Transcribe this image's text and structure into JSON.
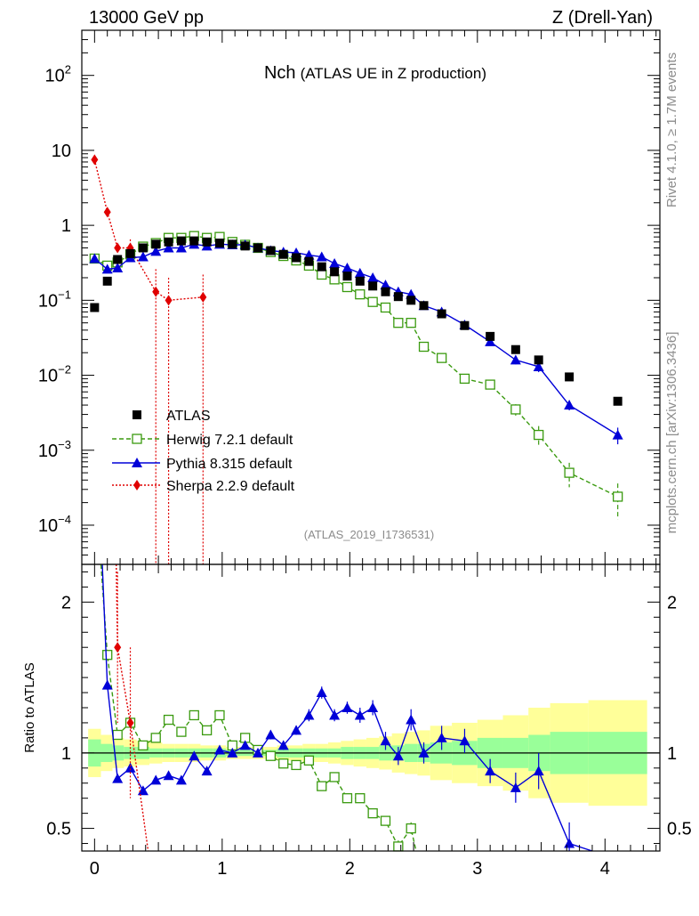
{
  "header": {
    "left": "13000 GeV pp",
    "right": "Z (Drell-Yan)"
  },
  "side_labels": {
    "top": "Rivet 4.1.0, ≥ 1.7M events",
    "bottom": "mcplots.cern.ch [arXiv:1306.3436]"
  },
  "colors": {
    "atlas": "#000000",
    "herwig": "#3a9a0f",
    "pythia": "#0000d8",
    "sherpa": "#e00000",
    "band_outer": "#ffff99",
    "band_inner": "#99ff99"
  },
  "chart_data": [
    {
      "type": "scatter",
      "log_y": true,
      "title": "Nch (ATLAS UE in Z production)",
      "title_main": "Nch",
      "title_sub": "(ATLAS UE in Z production)",
      "reference": "(ATLAS_2019_I1736531)",
      "xlabel": "",
      "ylabel": "",
      "xlim": [
        -0.1,
        4.43
      ],
      "ylim": [
        3e-05,
        400
      ],
      "y_ticks": [
        {
          "value": 0.0001,
          "base": "10",
          "exp": "−4"
        },
        {
          "value": 0.001,
          "base": "10",
          "exp": "−3"
        },
        {
          "value": 0.01,
          "base": "10",
          "exp": "−2"
        },
        {
          "value": 0.1,
          "base": "10",
          "exp": "−1"
        },
        {
          "value": 1,
          "base": "1",
          "exp": ""
        },
        {
          "value": 10,
          "base": "10",
          "exp": ""
        },
        {
          "value": 100,
          "base": "10",
          "exp": "2"
        }
      ],
      "legend": [
        "ATLAS",
        "Herwig 7.2.1 default",
        "Pythia 8.315 default",
        "Sherpa 2.2.9 default"
      ],
      "series": [
        {
          "name": "ATLAS",
          "x": [
            0,
            0.1,
            0.18,
            0.28,
            0.38,
            0.48,
            0.58,
            0.68,
            0.78,
            0.88,
            0.98,
            1.08,
            1.18,
            1.28,
            1.38,
            1.48,
            1.58,
            1.68,
            1.78,
            1.88,
            1.98,
            2.08,
            2.18,
            2.28,
            2.38,
            2.48,
            2.58,
            2.72,
            2.9,
            3.1,
            3.3,
            3.48,
            3.72,
            4.1
          ],
          "y": [
            0.08,
            0.18,
            0.35,
            0.42,
            0.5,
            0.56,
            0.6,
            0.62,
            0.62,
            0.6,
            0.58,
            0.56,
            0.53,
            0.5,
            0.46,
            0.41,
            0.37,
            0.33,
            0.28,
            0.24,
            0.21,
            0.18,
            0.155,
            0.13,
            0.112,
            0.1,
            0.085,
            0.066,
            0.046,
            0.033,
            0.022,
            0.016,
            0.0095,
            0.0045
          ]
        },
        {
          "name": "Herwig 7.2.1 default",
          "x": [
            0,
            0.1,
            0.18,
            0.28,
            0.38,
            0.48,
            0.58,
            0.68,
            0.78,
            0.88,
            0.98,
            1.08,
            1.18,
            1.28,
            1.38,
            1.48,
            1.58,
            1.68,
            1.78,
            1.88,
            1.98,
            2.08,
            2.18,
            2.28,
            2.38,
            2.48,
            2.58,
            2.72,
            2.9,
            3.1,
            3.3,
            3.48,
            3.72,
            4.1
          ],
          "y": [
            0.36,
            0.29,
            0.32,
            0.41,
            0.52,
            0.58,
            0.68,
            0.68,
            0.72,
            0.68,
            0.7,
            0.6,
            0.55,
            0.5,
            0.44,
            0.39,
            0.34,
            0.29,
            0.22,
            0.19,
            0.15,
            0.12,
            0.095,
            0.08,
            0.05,
            0.05,
            0.024,
            0.017,
            0.009,
            0.0075,
            0.0035,
            0.0016,
            0.0005,
            0.00024
          ],
          "err": [
            0,
            0,
            0,
            0,
            0,
            0,
            0,
            0,
            0,
            0,
            0,
            0,
            0,
            0,
            0,
            0,
            0,
            0,
            0,
            0,
            0,
            0,
            0,
            0,
            0,
            0,
            0,
            0,
            0,
            0,
            0.0006,
            0.0005,
            0.00018,
            0.00012
          ]
        },
        {
          "name": "Pythia 8.315 default",
          "x": [
            0,
            0.1,
            0.18,
            0.28,
            0.38,
            0.48,
            0.58,
            0.68,
            0.78,
            0.88,
            0.98,
            1.08,
            1.18,
            1.28,
            1.38,
            1.48,
            1.58,
            1.68,
            1.78,
            1.88,
            1.98,
            2.08,
            2.18,
            2.28,
            2.38,
            2.48,
            2.58,
            2.72,
            2.9,
            3.1,
            3.3,
            3.48,
            3.72,
            4.1
          ],
          "y": [
            0.36,
            0.26,
            0.27,
            0.37,
            0.38,
            0.45,
            0.5,
            0.5,
            0.56,
            0.53,
            0.56,
            0.55,
            0.55,
            0.5,
            0.46,
            0.44,
            0.43,
            0.4,
            0.38,
            0.31,
            0.27,
            0.23,
            0.2,
            0.16,
            0.13,
            0.12,
            0.085,
            0.07,
            0.047,
            0.028,
            0.016,
            0.013,
            0.004,
            0.0016
          ],
          "err": [
            0,
            0,
            0,
            0,
            0,
            0,
            0,
            0,
            0,
            0,
            0,
            0,
            0,
            0,
            0,
            0,
            0,
            0,
            0,
            0,
            0,
            0,
            0,
            0,
            0,
            0,
            0,
            0,
            0,
            0,
            0.002,
            0.002,
            0.0006,
            0.0004
          ]
        },
        {
          "name": "Sherpa 2.2.9 default",
          "x": [
            0,
            0.1,
            0.18,
            0.28,
            0.48,
            0.58,
            0.85
          ],
          "y": [
            7.5,
            1.5,
            0.5,
            0.5,
            0.13,
            0.1,
            0.11
          ],
          "err": [
            0,
            0,
            0,
            0.15,
            0.13,
            0.1,
            0.11
          ]
        }
      ]
    },
    {
      "type": "line",
      "ylabel": "Ratio to ATLAS",
      "xlim": [
        -0.1,
        4.43
      ],
      "ylim": [
        0.35,
        2.25
      ],
      "x_ticks": [
        0,
        1,
        2,
        3,
        4
      ],
      "y_ticks": [
        0.5,
        1,
        2
      ],
      "band_edges": [
        -0.05,
        0.05,
        0.14,
        0.23,
        0.33,
        0.43,
        0.53,
        0.63,
        0.73,
        0.83,
        0.93,
        1.03,
        1.13,
        1.23,
        1.33,
        1.43,
        1.53,
        1.63,
        1.73,
        1.83,
        1.93,
        2.03,
        2.13,
        2.23,
        2.33,
        2.43,
        2.53,
        2.63,
        2.8,
        3.0,
        3.2,
        3.4,
        3.57,
        3.87,
        4.33
      ],
      "band_inner": [
        0.09,
        0.06,
        0.05,
        0.04,
        0.04,
        0.03,
        0.03,
        0.03,
        0.03,
        0.03,
        0.03,
        0.02,
        0.02,
        0.02,
        0.02,
        0.03,
        0.03,
        0.03,
        0.03,
        0.03,
        0.04,
        0.04,
        0.04,
        0.05,
        0.05,
        0.06,
        0.06,
        0.07,
        0.08,
        0.1,
        0.1,
        0.12,
        0.14,
        0.14
      ],
      "band_outer": [
        0.16,
        0.12,
        0.1,
        0.09,
        0.08,
        0.07,
        0.06,
        0.06,
        0.06,
        0.05,
        0.05,
        0.04,
        0.04,
        0.04,
        0.04,
        0.05,
        0.05,
        0.06,
        0.06,
        0.07,
        0.08,
        0.09,
        0.1,
        0.11,
        0.13,
        0.14,
        0.15,
        0.18,
        0.2,
        0.22,
        0.25,
        0.3,
        0.33,
        0.35
      ],
      "series": [
        {
          "name": "Herwig 7.2.1 default",
          "x": [
            0.1,
            0.18,
            0.28,
            0.38,
            0.48,
            0.58,
            0.68,
            0.78,
            0.88,
            0.98,
            1.08,
            1.18,
            1.28,
            1.38,
            1.48,
            1.58,
            1.68,
            1.78,
            1.88,
            1.98,
            2.08,
            2.18,
            2.28,
            2.38,
            2.48
          ],
          "y": [
            1.65,
            1.12,
            1.2,
            1.05,
            1.1,
            1.22,
            1.14,
            1.25,
            1.15,
            1.25,
            1.05,
            1.1,
            1.02,
            0.98,
            0.93,
            0.92,
            0.95,
            0.78,
            0.84,
            0.7,
            0.7,
            0.6,
            0.55,
            0.38,
            0.5
          ],
          "err": [
            0,
            0,
            0,
            0,
            0,
            0,
            0,
            0,
            0,
            0,
            0,
            0,
            0,
            0,
            0,
            0,
            0,
            0,
            0,
            0.02,
            0.02,
            0.03,
            0.03,
            0.04,
            0.04
          ]
        },
        {
          "name": "Pythia 8.315 default",
          "x": [
            0.1,
            0.18,
            0.28,
            0.38,
            0.48,
            0.58,
            0.68,
            0.78,
            0.88,
            0.98,
            1.08,
            1.18,
            1.28,
            1.38,
            1.48,
            1.58,
            1.68,
            1.78,
            1.88,
            1.98,
            2.08,
            2.18,
            2.28,
            2.38,
            2.48,
            2.58,
            2.72,
            2.9,
            3.1,
            3.3,
            3.48,
            3.72
          ],
          "y": [
            1.45,
            0.83,
            0.9,
            0.75,
            0.82,
            0.85,
            0.82,
            0.98,
            0.88,
            1.02,
            1.0,
            1.05,
            1.0,
            1.12,
            1.05,
            1.15,
            1.25,
            1.4,
            1.25,
            1.3,
            1.25,
            1.3,
            1.08,
            0.98,
            1.22,
            1.0,
            1.1,
            1.08,
            0.88,
            0.77,
            0.88,
            0.4
          ],
          "err": [
            0.03,
            0.02,
            0.02,
            0.02,
            0.02,
            0.02,
            0.02,
            0.02,
            0.02,
            0.02,
            0.02,
            0.02,
            0.02,
            0.03,
            0.03,
            0.03,
            0.04,
            0.04,
            0.04,
            0.04,
            0.05,
            0.05,
            0.06,
            0.06,
            0.07,
            0.07,
            0.08,
            0.08,
            0.08,
            0.1,
            0.12,
            0.14
          ]
        },
        {
          "name": "Sherpa 2.2.9 default",
          "x": [
            0.18,
            0.28
          ],
          "y": [
            1.7,
            1.2
          ],
          "err": [
            0.5,
            0.5
          ]
        }
      ]
    }
  ]
}
